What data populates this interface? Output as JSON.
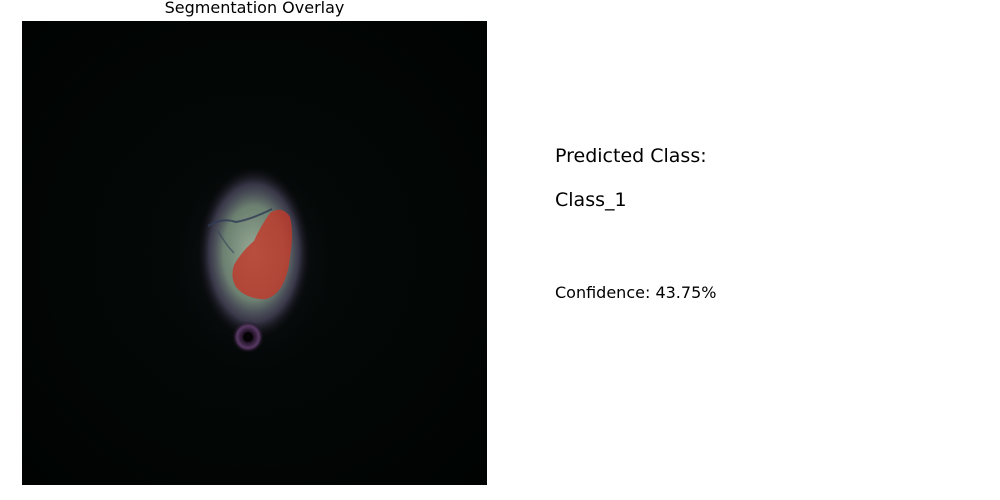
{
  "overlay": {
    "title": "Segmentation Overlay"
  },
  "prediction": {
    "heading": "Predicted Class:",
    "class_name": "Class_1",
    "confidence_label": "Confidence: 43.75%"
  },
  "colors": {
    "background": "#000000",
    "mask": "#c0392b",
    "cell": "#8a9a8a"
  }
}
